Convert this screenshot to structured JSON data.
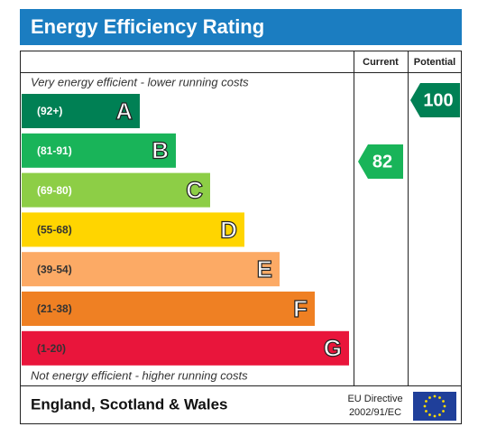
{
  "title": "Energy Efficiency Rating",
  "columns": {
    "current": "Current",
    "potential": "Potential"
  },
  "top_note": "Very energy efficient - lower running costs",
  "bottom_note": "Not energy efficient - higher running costs",
  "bands": [
    {
      "range": "(92+)",
      "letter": "A",
      "color": "#008054"
    },
    {
      "range": "(81-91)",
      "letter": "B",
      "color": "#19b459"
    },
    {
      "range": "(69-80)",
      "letter": "C",
      "color": "#8dce46"
    },
    {
      "range": "(55-68)",
      "letter": "D",
      "color": "#ffd500"
    },
    {
      "range": "(39-54)",
      "letter": "E",
      "color": "#fcaa65"
    },
    {
      "range": "(21-38)",
      "letter": "F",
      "color": "#ef8023"
    },
    {
      "range": "(1-20)",
      "letter": "G",
      "color": "#e9153b"
    }
  ],
  "current": {
    "value": 82,
    "color": "#19b459"
  },
  "potential": {
    "value": 100,
    "color": "#008054"
  },
  "footer": {
    "region": "England, Scotland & Wales",
    "directive": "EU Directive",
    "code": "2002/91/EC"
  }
}
